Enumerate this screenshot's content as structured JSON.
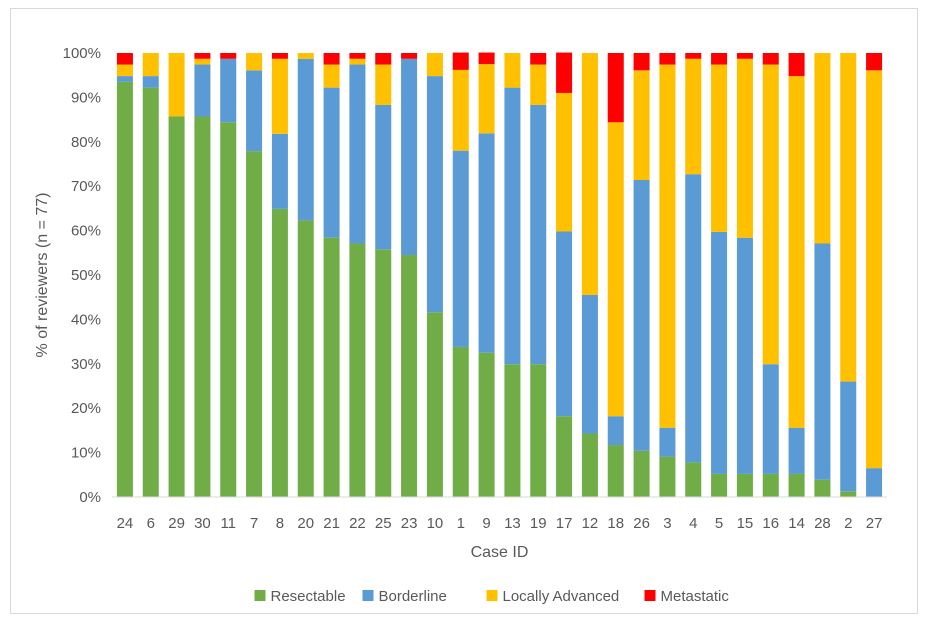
{
  "chart_data": {
    "type": "bar",
    "stacked": true,
    "title": "",
    "xlabel": "Case ID",
    "ylabel": "% of reviewers (n = 77)",
    "ylim": [
      0,
      100
    ],
    "yticks": [
      0,
      10,
      20,
      30,
      40,
      50,
      60,
      70,
      80,
      90,
      100
    ],
    "ytick_labels": [
      "0%",
      "10%",
      "20%",
      "30%",
      "40%",
      "50%",
      "60%",
      "70%",
      "80%",
      "90%",
      "100%"
    ],
    "grid": false,
    "legend_position": "bottom",
    "categories": [
      "24",
      "6",
      "29",
      "30",
      "11",
      "7",
      "8",
      "20",
      "21",
      "22",
      "25",
      "23",
      "10",
      "1",
      "9",
      "13",
      "19",
      "17",
      "12",
      "18",
      "26",
      "3",
      "4",
      "5",
      "15",
      "16",
      "14",
      "28",
      "2",
      "27"
    ],
    "series": [
      {
        "name": "Resectable",
        "color": "#70ad47",
        "values": [
          93.5,
          92.2,
          85.7,
          85.7,
          84.4,
          77.9,
          64.9,
          62.3,
          58.4,
          57.1,
          55.8,
          54.5,
          41.6,
          33.8,
          32.5,
          29.9,
          29.9,
          18.2,
          14.3,
          11.7,
          10.4,
          9.1,
          7.8,
          5.2,
          5.2,
          5.2,
          5.2,
          3.9,
          1.3,
          0.0
        ]
      },
      {
        "name": "Borderline",
        "color": "#5b9bd5",
        "values": [
          1.3,
          2.6,
          0.0,
          11.7,
          14.3,
          18.2,
          16.9,
          36.4,
          33.8,
          40.3,
          32.5,
          44.2,
          53.2,
          44.2,
          49.4,
          62.3,
          58.4,
          41.6,
          31.2,
          6.5,
          61.0,
          6.5,
          64.9,
          54.5,
          53.2,
          24.7,
          10.4,
          53.2,
          24.7,
          6.5
        ]
      },
      {
        "name": "Locally Advanced",
        "color": "#ffc000",
        "values": [
          2.6,
          5.2,
          14.3,
          1.3,
          0.0,
          3.9,
          16.9,
          1.3,
          5.2,
          1.3,
          9.1,
          0.0,
          5.2,
          18.2,
          15.6,
          7.8,
          9.1,
          31.2,
          54.5,
          66.2,
          24.7,
          81.8,
          26.0,
          37.7,
          40.3,
          67.5,
          79.2,
          42.9,
          74.0,
          89.6
        ]
      },
      {
        "name": "Metastatic",
        "color": "#ff0000",
        "values": [
          2.6,
          0.0,
          0.0,
          1.3,
          1.3,
          0.0,
          1.3,
          0.0,
          2.6,
          1.3,
          2.6,
          1.3,
          0.0,
          3.9,
          2.6,
          0.0,
          2.6,
          9.1,
          0.0,
          15.6,
          3.9,
          2.6,
          1.3,
          2.6,
          1.3,
          2.6,
          5.2,
          0.0,
          0.0,
          3.9
        ]
      }
    ]
  }
}
